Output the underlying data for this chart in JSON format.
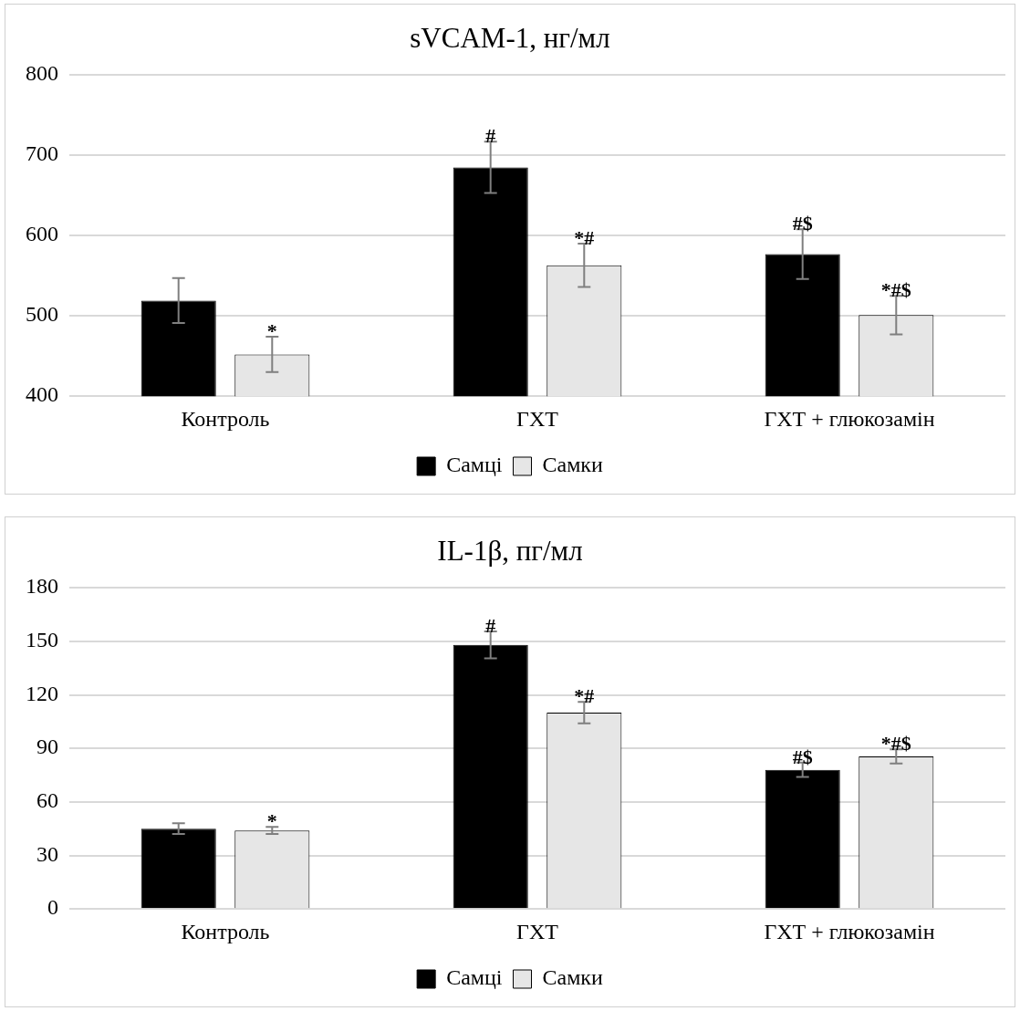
{
  "chart_data": [
    {
      "type": "bar",
      "title": "sVCAM-1, нг/мл",
      "categories": [
        "Контроль",
        "ГХТ",
        "ГХТ + глюкозамін"
      ],
      "series": [
        {
          "name": "Самці",
          "color": "#000000",
          "values": [
            519,
            685,
            577
          ],
          "errors": [
            28,
            32,
            31
          ],
          "value_labels": [
            null,
            "#",
            "#$"
          ]
        },
        {
          "name": "Самки",
          "color": "#e6e6e6",
          "values": [
            452,
            563,
            501
          ],
          "errors": [
            22,
            27,
            24
          ],
          "value_labels": [
            "*",
            "*#",
            "*#$"
          ]
        }
      ],
      "ylim": [
        400,
        800
      ],
      "yticks": [
        400,
        500,
        600,
        700,
        800
      ],
      "grid": "y",
      "legend": "bottom"
    },
    {
      "type": "bar",
      "title": "IL-1β, пг/мл",
      "categories": [
        "Контроль",
        "ГХТ",
        "ГХТ + глюкозамін"
      ],
      "series": [
        {
          "name": "Самці",
          "color": "#000000",
          "values": [
            45,
            148,
            78
          ],
          "errors": [
            3,
            7.5,
            4
          ],
          "value_labels": [
            null,
            "#",
            "#$"
          ]
        },
        {
          "name": "Самки",
          "color": "#e6e6e6",
          "values": [
            44,
            110,
            85.5
          ],
          "errors": [
            2,
            6,
            4
          ],
          "value_labels": [
            "*",
            "*#",
            "*#$"
          ]
        }
      ],
      "ylim": [
        0,
        180
      ],
      "yticks": [
        0,
        30,
        60,
        90,
        120,
        150,
        180
      ],
      "grid": "y",
      "legend": "bottom"
    }
  ]
}
